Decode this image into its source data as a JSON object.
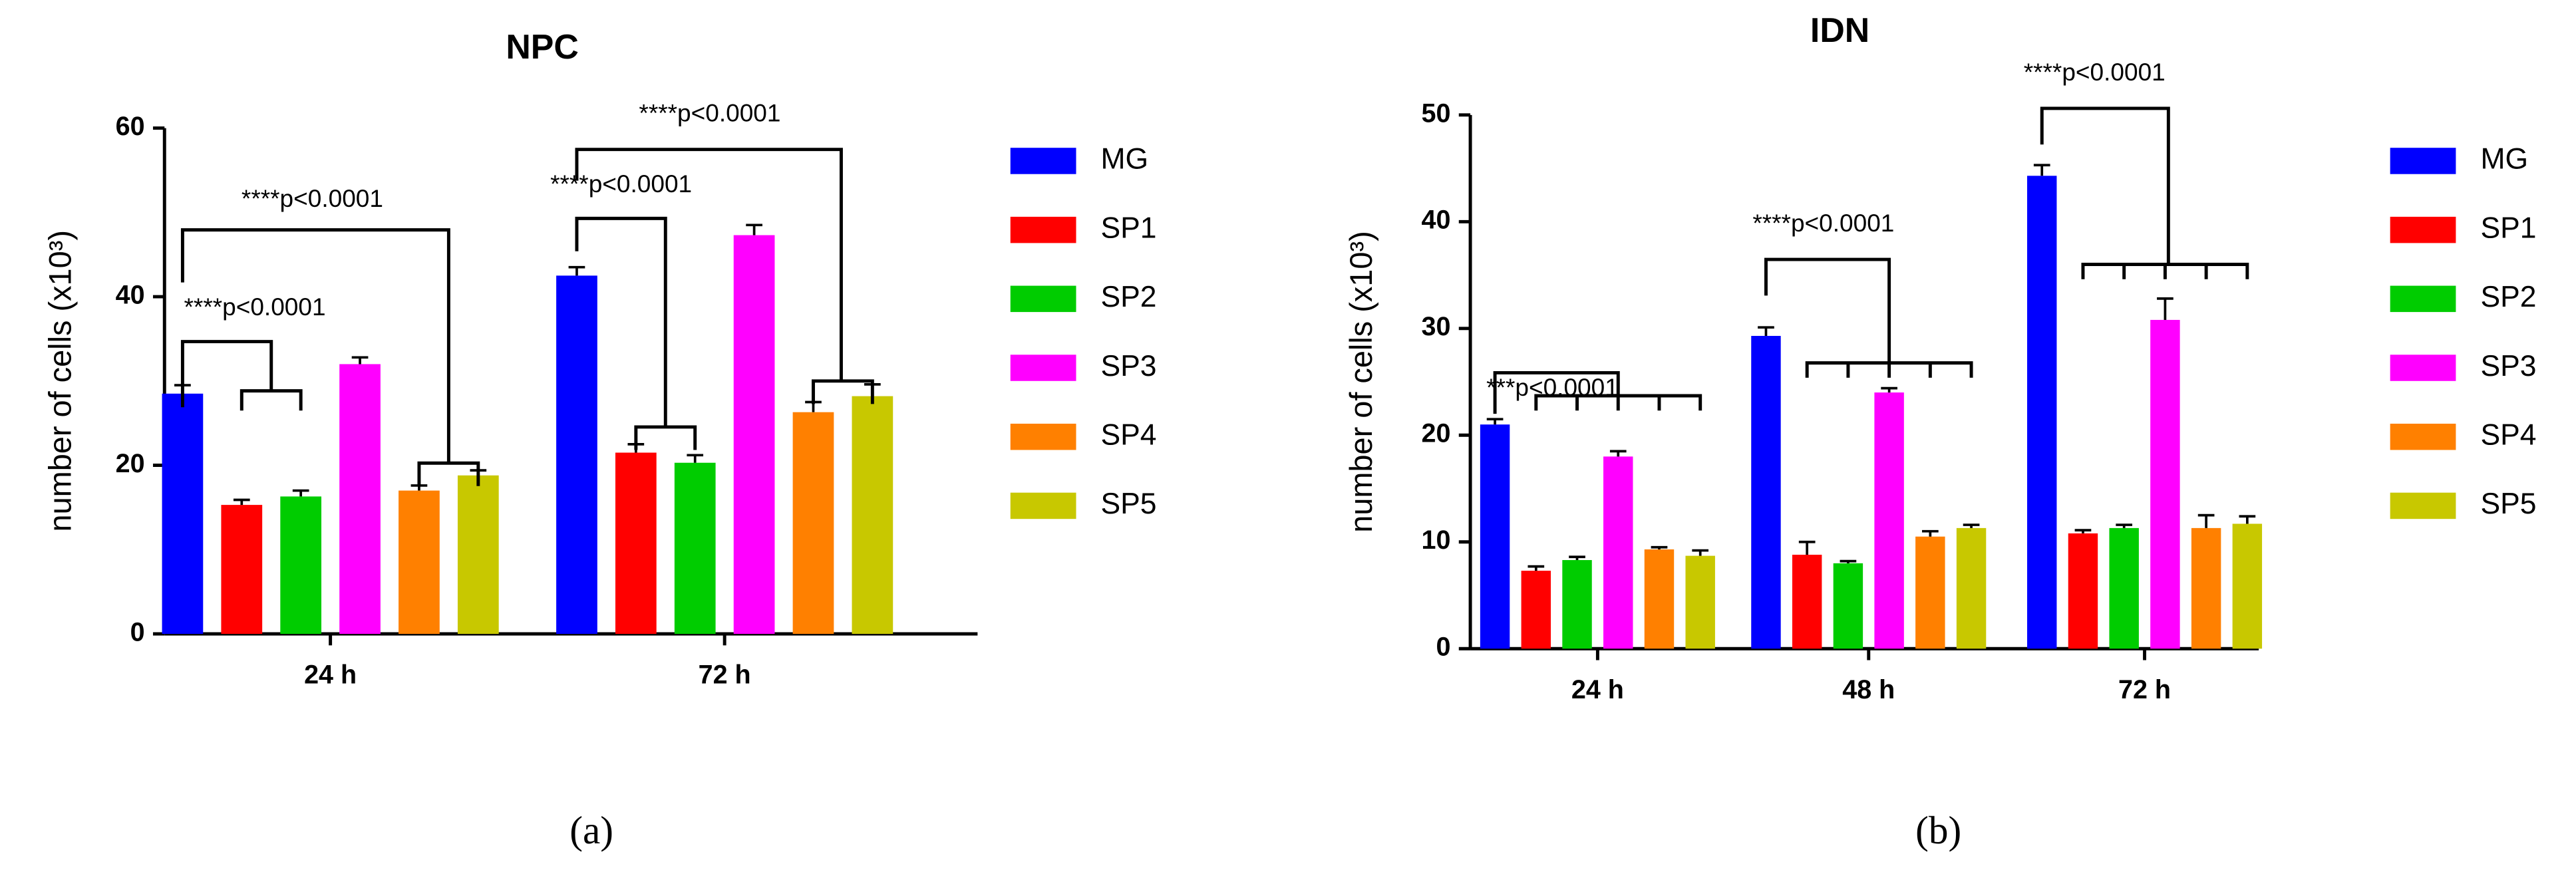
{
  "chart_data": [
    {
      "type": "bar",
      "title": "NPC",
      "ylabel": "number of cells (x10³)",
      "caption": "(a)",
      "categories": [
        "24 h",
        "72 h"
      ],
      "series": [
        {
          "name": "MG",
          "color": "#0000ff",
          "values": [
            28.5,
            42.5
          ],
          "errors": [
            1.0,
            1.0
          ]
        },
        {
          "name": "SP1",
          "color": "#ff0000",
          "values": [
            15.3,
            21.5
          ],
          "errors": [
            0.6,
            1.0
          ]
        },
        {
          "name": "SP2",
          "color": "#00cc00",
          "values": [
            16.3,
            20.3
          ],
          "errors": [
            0.7,
            0.9
          ]
        },
        {
          "name": "SP3",
          "color": "#ff00ff",
          "values": [
            32.0,
            47.3
          ],
          "errors": [
            0.8,
            1.2
          ]
        },
        {
          "name": "SP4",
          "color": "#ff8000",
          "values": [
            17.0,
            26.3
          ],
          "errors": [
            0.6,
            1.2
          ]
        },
        {
          "name": "SP5",
          "color": "#c8c800",
          "values": [
            18.8,
            28.2
          ],
          "errors": [
            0.6,
            1.4
          ]
        }
      ],
      "ylim": [
        0,
        60
      ],
      "yticks": [
        0,
        20,
        40,
        60
      ],
      "annotations": [
        "****p<0.0001",
        "****p<0.0001",
        "****p<0.0001",
        "****p<0.0001"
      ]
    },
    {
      "type": "bar",
      "title": "IDN",
      "ylabel": "number of cells (x10³)",
      "caption": "(b)",
      "categories": [
        "24 h",
        "48 h",
        "72 h"
      ],
      "series": [
        {
          "name": "MG",
          "color": "#0000ff",
          "values": [
            21.0,
            29.3,
            44.3
          ],
          "errors": [
            0.5,
            0.8,
            1.0
          ]
        },
        {
          "name": "SP1",
          "color": "#ff0000",
          "values": [
            7.3,
            8.8,
            10.8
          ],
          "errors": [
            0.4,
            1.2,
            0.3
          ]
        },
        {
          "name": "SP2",
          "color": "#00cc00",
          "values": [
            8.3,
            8.0,
            11.3
          ],
          "errors": [
            0.3,
            0.2,
            0.3
          ]
        },
        {
          "name": "SP3",
          "color": "#ff00ff",
          "values": [
            18.0,
            24.0,
            30.8
          ],
          "errors": [
            0.5,
            0.4,
            2.0
          ]
        },
        {
          "name": "SP4",
          "color": "#ff8000",
          "values": [
            9.3,
            10.5,
            11.3
          ],
          "errors": [
            0.2,
            0.5,
            1.2
          ]
        },
        {
          "name": "SP5",
          "color": "#c8c800",
          "values": [
            8.7,
            11.3,
            11.7
          ],
          "errors": [
            0.5,
            0.3,
            0.7
          ]
        }
      ],
      "ylim": [
        0,
        50
      ],
      "yticks": [
        0,
        10,
        20,
        30,
        40,
        50
      ],
      "annotations": [
        "***p<0.0001",
        "****p<0.0001",
        "****p<0.0001"
      ]
    }
  ]
}
